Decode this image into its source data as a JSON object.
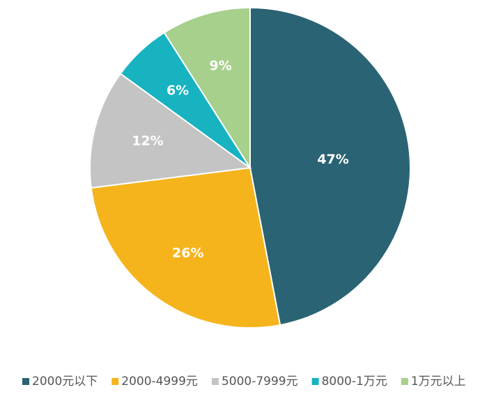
{
  "chart_data": {
    "type": "pie",
    "categories": [
      "2000元以下",
      "2000-4999元",
      "5000-7999元",
      "8000-1万元",
      "1万元以上"
    ],
    "values": [
      47,
      26,
      12,
      6,
      9
    ],
    "value_labels": [
      "47%",
      "26%",
      "12%",
      "6%",
      "9%"
    ],
    "colors": [
      "#2a6373",
      "#f5b41c",
      "#c4c4c4",
      "#17b3c1",
      "#a6d08b"
    ],
    "legend": "bottom"
  }
}
